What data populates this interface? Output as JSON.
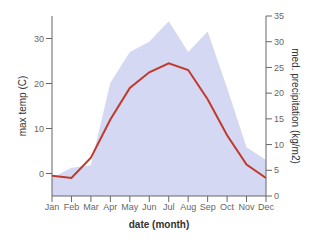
{
  "chart_data": {
    "type": "line",
    "categories": [
      "Jan",
      "Feb",
      "Mar",
      "Apr",
      "May",
      "Jun",
      "Jul",
      "Aug",
      "Sep",
      "Oct",
      "Nov",
      "Dec"
    ],
    "series": [
      {
        "type": "area",
        "axis": "y2",
        "color": "#b0b8e8",
        "values": [
          3.5,
          5.5,
          6.0,
          22.0,
          28.0,
          30.0,
          34.0,
          28.0,
          32.0,
          21.0,
          9.5,
          7.0
        ]
      },
      {
        "type": "line",
        "color": "#c0392b",
        "values": [
          -0.5,
          -1.0,
          3.5,
          12.0,
          19.0,
          22.5,
          24.5,
          23.0,
          16.5,
          8.5,
          2.0,
          -1.0
        ]
      }
    ],
    "xlabel": "date (month)",
    "ylabel": "max temp (C)",
    "y2label": "med. precipitation (kg/m2)",
    "ylim": [
      -5,
      35
    ],
    "yticks": [
      0,
      10,
      20,
      30
    ],
    "y2lim": [
      0,
      35
    ],
    "y2ticks": [
      0,
      5,
      10,
      15,
      20,
      25,
      30,
      35
    ],
    "grid": false
  }
}
